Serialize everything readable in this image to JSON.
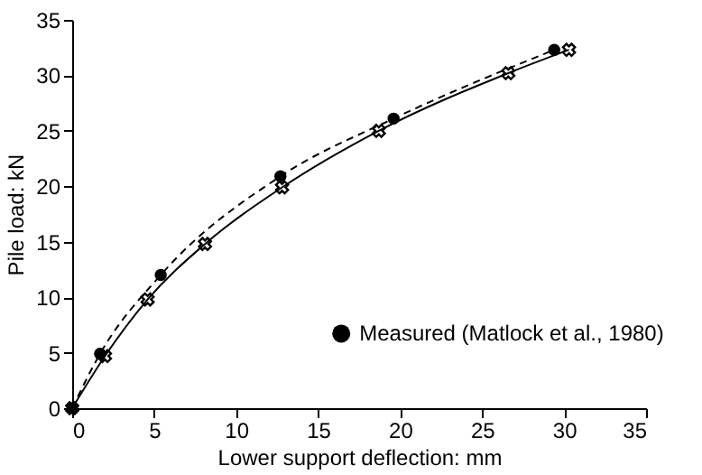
{
  "chart_data": {
    "type": "line",
    "xlabel": "Lower support deflection: mm",
    "ylabel": "Pile load: kN",
    "series": [
      {
        "color": "#000000",
        "marker": "cross",
        "line_style": "solid",
        "x": [
          0,
          2,
          4.6,
          8.1,
          12.8,
          18.7,
          26.6,
          30.3
        ],
        "values": [
          0,
          4.7,
          9.8,
          14.8,
          19.9,
          25,
          30.2,
          32.3
        ]
      },
      {
        "name": "Measured (Matlock et al., 1980)",
        "color": "#000000",
        "marker": "circle",
        "line_style": "dashed",
        "x": [
          0,
          1.7,
          5.4,
          12.7,
          19.6,
          29.4
        ],
        "values": [
          0,
          4.9,
          12,
          20.9,
          26.1,
          32.3
        ]
      }
    ],
    "xlim": [
      0,
      35
    ],
    "xticks": [
      0,
      5,
      10,
      15,
      20,
      25,
      30,
      35
    ],
    "ylim": [
      0,
      35
    ],
    "yticks": [
      0,
      5,
      10,
      15,
      20,
      25,
      30,
      35
    ],
    "grid": false,
    "legend": "right"
  }
}
